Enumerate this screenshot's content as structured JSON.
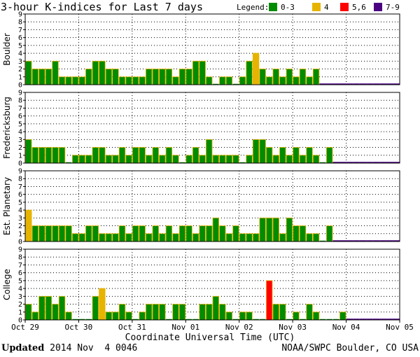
{
  "chart_data": {
    "type": "bar",
    "title": "3-hour K-indices for Last 7 days",
    "legend": {
      "label": "Legend:",
      "entries": [
        {
          "label": "0-3",
          "color": "#008c00"
        },
        {
          "label": "4",
          "color": "#e6b400"
        },
        {
          "label": "5,6",
          "color": "#ff0000"
        },
        {
          "label": "7-9",
          "color": "#4b0082"
        }
      ]
    },
    "xlabel": "Coordinate Universal Time (UTC)",
    "x_ticks": [
      "Oct 29",
      "Oct 30",
      "Oct 31",
      "Nov 01",
      "Nov 02",
      "Nov 03",
      "Nov 04",
      "Nov 05"
    ],
    "ylim": [
      0,
      9
    ],
    "y_ticks": [
      "0",
      "1",
      "2",
      "3",
      "4",
      "5",
      "6",
      "7",
      "8",
      "9"
    ],
    "bins": 56,
    "panels": [
      {
        "name": "Boulder",
        "values": [
          3,
          2,
          2,
          2,
          3,
          1,
          1,
          1,
          1,
          2,
          3,
          3,
          2,
          2,
          1,
          1,
          1,
          1,
          2,
          2,
          2,
          2,
          1,
          2,
          2,
          3,
          3,
          1,
          0,
          1,
          1,
          0,
          1,
          3,
          4,
          2,
          1,
          2,
          1,
          2,
          1,
          2,
          1,
          2,
          null,
          null,
          null,
          null,
          null,
          null,
          null,
          null,
          null,
          null,
          null,
          null
        ]
      },
      {
        "name": "Fredericksburg",
        "values": [
          3,
          2,
          2,
          2,
          2,
          2,
          0,
          1,
          1,
          1,
          2,
          2,
          1,
          1,
          2,
          1,
          2,
          2,
          1,
          2,
          1,
          2,
          1,
          0,
          1,
          2,
          1,
          3,
          1,
          1,
          1,
          1,
          0,
          1,
          3,
          3,
          2,
          1,
          2,
          1,
          2,
          1,
          2,
          1,
          0,
          2,
          null,
          null,
          null,
          null,
          null,
          null,
          null,
          null,
          null,
          null
        ]
      },
      {
        "name": "Est. Planetary",
        "values": [
          4,
          2,
          2,
          2,
          2,
          2,
          2,
          1,
          1,
          2,
          2,
          1,
          1,
          1,
          2,
          1,
          2,
          2,
          1,
          2,
          1,
          2,
          1,
          2,
          2,
          1,
          2,
          2,
          3,
          2,
          1,
          2,
          1,
          1,
          1,
          3,
          3,
          3,
          1,
          3,
          2,
          2,
          1,
          1,
          0,
          2,
          null,
          null,
          null,
          null,
          null,
          null,
          null,
          null,
          null,
          null
        ]
      },
      {
        "name": "College",
        "values": [
          2,
          1,
          3,
          3,
          2,
          3,
          1,
          0,
          0,
          0,
          3,
          4,
          1,
          1,
          2,
          1,
          0,
          1,
          2,
          2,
          2,
          0,
          2,
          2,
          0,
          0,
          2,
          2,
          3,
          2,
          1,
          0,
          1,
          1,
          0,
          0,
          5,
          2,
          2,
          0,
          1,
          0,
          2,
          1,
          0,
          0,
          0,
          1,
          null,
          null,
          null,
          null,
          null,
          null,
          null,
          null
        ]
      }
    ]
  },
  "footer": {
    "updated_label": "Updated",
    "updated_value": "2014 Nov  4 0046",
    "source": "NOAA/SWPC Boulder, CO USA"
  }
}
